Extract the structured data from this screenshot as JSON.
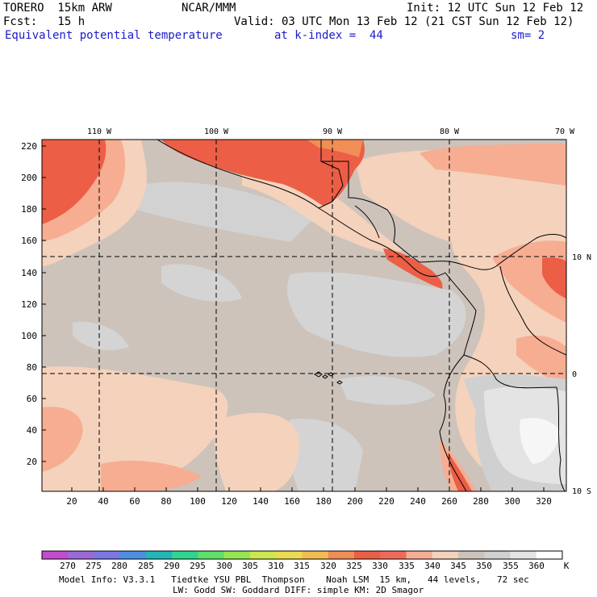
{
  "header": {
    "model": "TORERO  15km ARW",
    "org": "NCAR/MMM",
    "init": "Init: 12 UTC Sun 12 Feb 12",
    "fcst": "Fcst:   15 h",
    "valid": "Valid: 03 UTC Mon 13 Feb 12 (21 CST Sun 12 Feb 12)",
    "field": "Equivalent potential temperature",
    "level": "at k-index =  44",
    "smooth": "sm= 2"
  },
  "map": {
    "lon_labels": [
      "110 W",
      "100 W",
      "90 W",
      "80 W",
      "70 W"
    ],
    "lat_labels": [
      "10 N",
      "0",
      "10 S"
    ],
    "y_ticks": [
      "220",
      "200",
      "180",
      "160",
      "140",
      "120",
      "100",
      "80",
      "60",
      "40",
      "20"
    ],
    "x_ticks": [
      "20",
      "40",
      "60",
      "80",
      "100",
      "120",
      "140",
      "160",
      "180",
      "200",
      "220",
      "240",
      "260",
      "280",
      "300",
      "320"
    ]
  },
  "colorbar": {
    "labels": [
      "270",
      "275",
      "280",
      "285",
      "290",
      "295",
      "300",
      "305",
      "310",
      "315",
      "320",
      "325",
      "330",
      "335",
      "340",
      "345",
      "350",
      "355",
      "360"
    ],
    "unit": "K",
    "colors": [
      "#c34ccc",
      "#9a6ad6",
      "#7a78e4",
      "#4c8ee2",
      "#22b6b8",
      "#2ed68e",
      "#5ee06a",
      "#96e654",
      "#cce84e",
      "#ecdc50",
      "#f4bc50",
      "#f08e56",
      "#ec5e46",
      "#f06a5a",
      "#f6ad92",
      "#f4d2bc",
      "#cdc3bb",
      "#d0d0d0",
      "#e4e4e4",
      "#ffffff"
    ]
  },
  "footer": {
    "line1": "Model Info: V3.3.1   Tiedtke YSU PBL  Thompson    Noah LSM  15 km,   44 levels,   72 sec",
    "line2": "LW: Godd SW: Goddard DIFF: simple KM: 2D Smagor"
  }
}
